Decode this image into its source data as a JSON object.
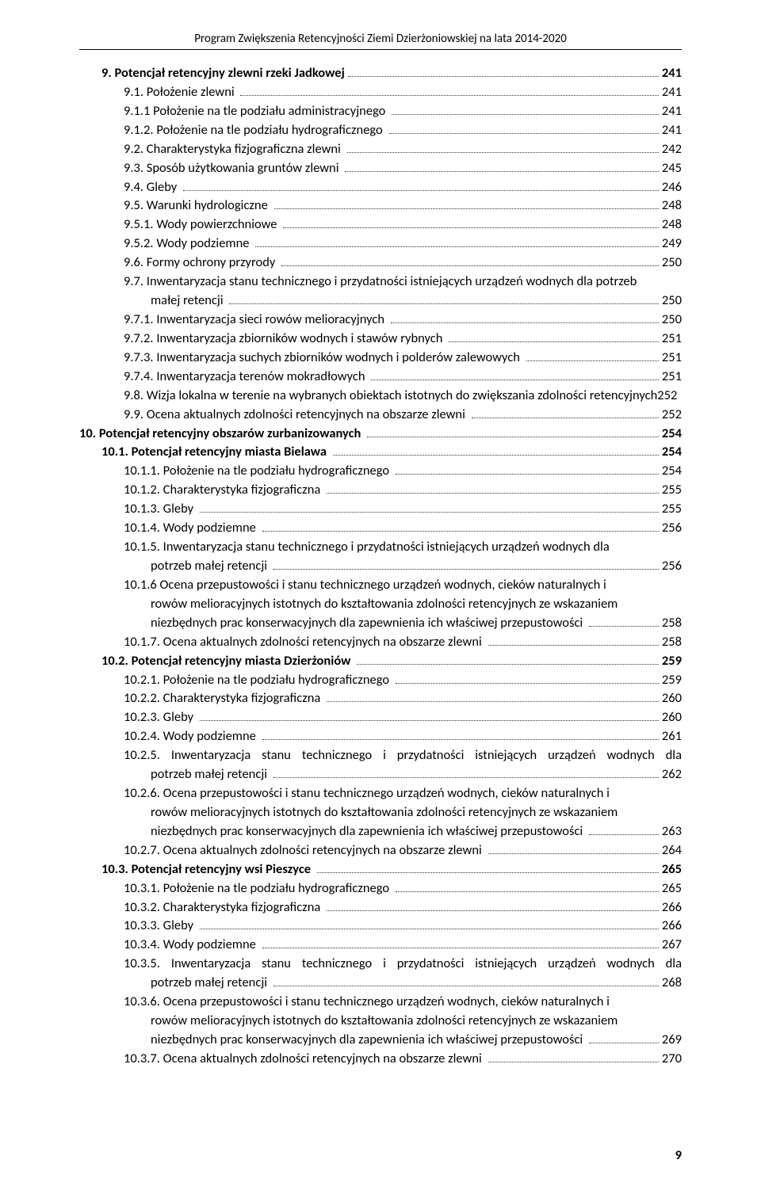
{
  "header": "Program Zwiększenia Retencyjności Ziemi Dzierżoniowskiej na lata 2014-2020",
  "page_number": "9",
  "toc": [
    {
      "indent": 1,
      "bold": true,
      "text": "9. Potencjał retencyjny zlewni rzeki Jadkowej",
      "page": "241"
    },
    {
      "indent": 2,
      "bold": false,
      "text": "9.1. Położenie zlewni ",
      "page": "241"
    },
    {
      "indent": 2,
      "bold": false,
      "text": "9.1.1 Położenie na tle podziału administracyjnego ",
      "page": "241"
    },
    {
      "indent": 2,
      "bold": false,
      "text": "9.1.2. Położenie na tle podziału hydrograficznego ",
      "page": "241"
    },
    {
      "indent": 2,
      "bold": false,
      "text": "9.2. Charakterystyka fizjograficzna zlewni ",
      "page": "242"
    },
    {
      "indent": 2,
      "bold": false,
      "text": "9.3. Sposób użytkowania gruntów zlewni ",
      "page": "245"
    },
    {
      "indent": 2,
      "bold": false,
      "text": "9.4. Gleby ",
      "page": "246"
    },
    {
      "indent": 2,
      "bold": false,
      "text": "9.5. Warunki hydrologiczne ",
      "page": "248"
    },
    {
      "indent": 2,
      "bold": false,
      "text": "9.5.1. Wody powierzchniowe ",
      "page": "248"
    },
    {
      "indent": 2,
      "bold": false,
      "text": "9.5.2. Wody podziemne ",
      "page": "249"
    },
    {
      "indent": 2,
      "bold": false,
      "text": "9.6. Formy ochrony przyrody ",
      "page": "250"
    },
    {
      "type": "multi",
      "indent": 2,
      "bold": false,
      "lines": [
        "9.7. Inwentaryzacja stanu technicznego i przydatności istniejących urządzeń wodnych dla potrzeb"
      ],
      "last": {
        "text": "małej retencji ",
        "page": "250",
        "sub": true
      }
    },
    {
      "indent": 2,
      "bold": false,
      "text": "9.7.1. Inwentaryzacja sieci rowów melioracyjnych ",
      "page": "250"
    },
    {
      "indent": 2,
      "bold": false,
      "text": "9.7.2. Inwentaryzacja zbiorników wodnych i stawów rybnych ",
      "page": "251"
    },
    {
      "indent": 2,
      "bold": false,
      "text": "9.7.3. Inwentaryzacja suchych zbiorników wodnych i polderów zalewowych ",
      "page": "251"
    },
    {
      "indent": 2,
      "bold": false,
      "text": "9.7.4. Inwentaryzacja terenów mokradłowych ",
      "page": "251"
    },
    {
      "indent": 2,
      "bold": false,
      "nodots": true,
      "text": "9.8. Wizja lokalna w terenie na wybranych obiektach istotnych do zwiększania zdolności retencyjnych",
      "page": "  252"
    },
    {
      "indent": 2,
      "bold": false,
      "text": "9.9. Ocena aktualnych zdolności retencyjnych na obszarze zlewni ",
      "page": "252"
    },
    {
      "indent": 0,
      "bold": true,
      "text": "10. Potencjał retencyjny obszarów zurbanizowanych ",
      "page": "254"
    },
    {
      "indent": 1,
      "bold": true,
      "text": "10.1. Potencjał retencyjny miasta Bielawa ",
      "page": "254"
    },
    {
      "indent": 2,
      "bold": false,
      "text": "10.1.1. Położenie na tle podziału hydrograficznego ",
      "page": "254"
    },
    {
      "indent": 2,
      "bold": false,
      "text": "10.1.2. Charakterystyka fizjograficzna ",
      "page": "255"
    },
    {
      "indent": 2,
      "bold": false,
      "text": "10.1.3. Gleby ",
      "page": "255"
    },
    {
      "indent": 2,
      "bold": false,
      "text": "10.1.4. Wody podziemne ",
      "page": "256"
    },
    {
      "type": "multi",
      "indent": 2,
      "bold": false,
      "lines": [
        "10.1.5. Inwentaryzacja stanu technicznego i przydatności istniejących urządzeń wodnych dla"
      ],
      "last": {
        "text": "potrzeb małej retencji ",
        "page": "256",
        "sub": true
      }
    },
    {
      "type": "multi",
      "indent": 2,
      "bold": false,
      "lines": [
        "10.1.6 Ocena przepustowości i stanu technicznego urządzeń wodnych, cieków naturalnych i",
        "rowów melioracyjnych istotnych do kształtowania zdolności retencyjnych ze wskazaniem"
      ],
      "last": {
        "text": "niezbędnych prac konserwacyjnych dla zapewnienia ich właściwej przepustowości ",
        "page": "258",
        "sub": true
      }
    },
    {
      "indent": 2,
      "bold": false,
      "text": "10.1.7. Ocena aktualnych zdolności retencyjnych na obszarze zlewni ",
      "page": "258"
    },
    {
      "indent": 1,
      "bold": true,
      "text": "10.2. Potencjał retencyjny miasta Dzierżoniów ",
      "page": "259"
    },
    {
      "indent": 2,
      "bold": false,
      "text": "10.2.1. Położenie na tle podziału hydrograficznego ",
      "page": "259"
    },
    {
      "indent": 2,
      "bold": false,
      "text": "10.2.2. Charakterystyka fizjograficzna ",
      "page": "260"
    },
    {
      "indent": 2,
      "bold": false,
      "text": "10.2.3. Gleby ",
      "page": "260"
    },
    {
      "indent": 2,
      "bold": false,
      "text": "10.2.4. Wody podziemne ",
      "page": "261"
    },
    {
      "type": "multi",
      "indent": 2,
      "bold": false,
      "lines": [
        "10.2.5. Inwentaryzacja stanu technicznego i przydatności istniejących urządzeń wodnych dla"
      ],
      "last": {
        "text": "potrzeb małej retencji ",
        "page": "262",
        "sub": true
      },
      "justify": true
    },
    {
      "type": "multi",
      "indent": 2,
      "bold": false,
      "lines": [
        "10.2.6. Ocena przepustowości i stanu technicznego urządzeń wodnych, cieków naturalnych i",
        "rowów melioracyjnych istotnych do kształtowania zdolności retencyjnych ze wskazaniem"
      ],
      "last": {
        "text": "niezbędnych prac konserwacyjnych dla zapewnienia ich właściwej przepustowości ",
        "page": "263",
        "sub": true
      }
    },
    {
      "indent": 2,
      "bold": false,
      "text": "10.2.7. Ocena aktualnych zdolności retencyjnych na obszarze zlewni ",
      "page": "264"
    },
    {
      "indent": 1,
      "bold": true,
      "text": "10.3. Potencjał retencyjny wsi Pieszyce ",
      "page": "265"
    },
    {
      "indent": 2,
      "bold": false,
      "text": "10.3.1. Położenie na tle podziału hydrograficznego ",
      "page": "265"
    },
    {
      "indent": 2,
      "bold": false,
      "text": "10.3.2. Charakterystyka fizjograficzna ",
      "page": "266"
    },
    {
      "indent": 2,
      "bold": false,
      "text": "10.3.3. Gleby ",
      "page": "266"
    },
    {
      "indent": 2,
      "bold": false,
      "text": "10.3.4. Wody podziemne ",
      "page": "267"
    },
    {
      "type": "multi",
      "indent": 2,
      "bold": false,
      "lines": [
        "10.3.5. Inwentaryzacja stanu technicznego i przydatności istniejących urządzeń wodnych dla"
      ],
      "last": {
        "text": "potrzeb małej retencji ",
        "page": "268",
        "sub": true
      },
      "justify": true
    },
    {
      "type": "multi",
      "indent": 2,
      "bold": false,
      "lines": [
        "10.3.6. Ocena przepustowości i stanu technicznego urządzeń wodnych, cieków naturalnych i",
        "rowów melioracyjnych istotnych do kształtowania zdolności retencyjnych ze wskazaniem"
      ],
      "last": {
        "text": "niezbędnych prac konserwacyjnych dla zapewnienia ich właściwej przepustowości ",
        "page": "269",
        "sub": true
      }
    },
    {
      "indent": 2,
      "bold": false,
      "text": "10.3.7. Ocena aktualnych zdolności retencyjnych na obszarze zlewni ",
      "page": "270"
    }
  ]
}
